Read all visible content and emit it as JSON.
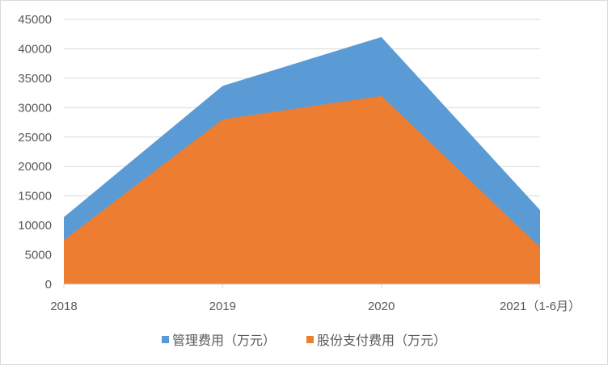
{
  "chart_data": {
    "type": "area",
    "title": "",
    "xlabel": "",
    "ylabel": "",
    "categories": [
      "2018",
      "2019",
      "2020",
      "2021（1-6月）"
    ],
    "series": [
      {
        "name": "管理费用（万元）",
        "color": "#5b9bd5",
        "values": [
          11400,
          33700,
          42000,
          12600
        ]
      },
      {
        "name": "股份支付费用（万元）",
        "color": "#ed7d31",
        "values": [
          7500,
          28000,
          32000,
          6300
        ]
      }
    ],
    "ylim": [
      0,
      45000
    ],
    "yticks": [
      "0",
      "5000",
      "10000",
      "15000",
      "20000",
      "25000",
      "30000",
      "35000",
      "40000",
      "45000"
    ],
    "grid": true,
    "legend_position": "bottom"
  },
  "legend": {
    "items": [
      {
        "label": "管理费用（万元）",
        "color": "#5b9bd5"
      },
      {
        "label": "股份支付费用（万元）",
        "color": "#ed7d31"
      }
    ]
  }
}
